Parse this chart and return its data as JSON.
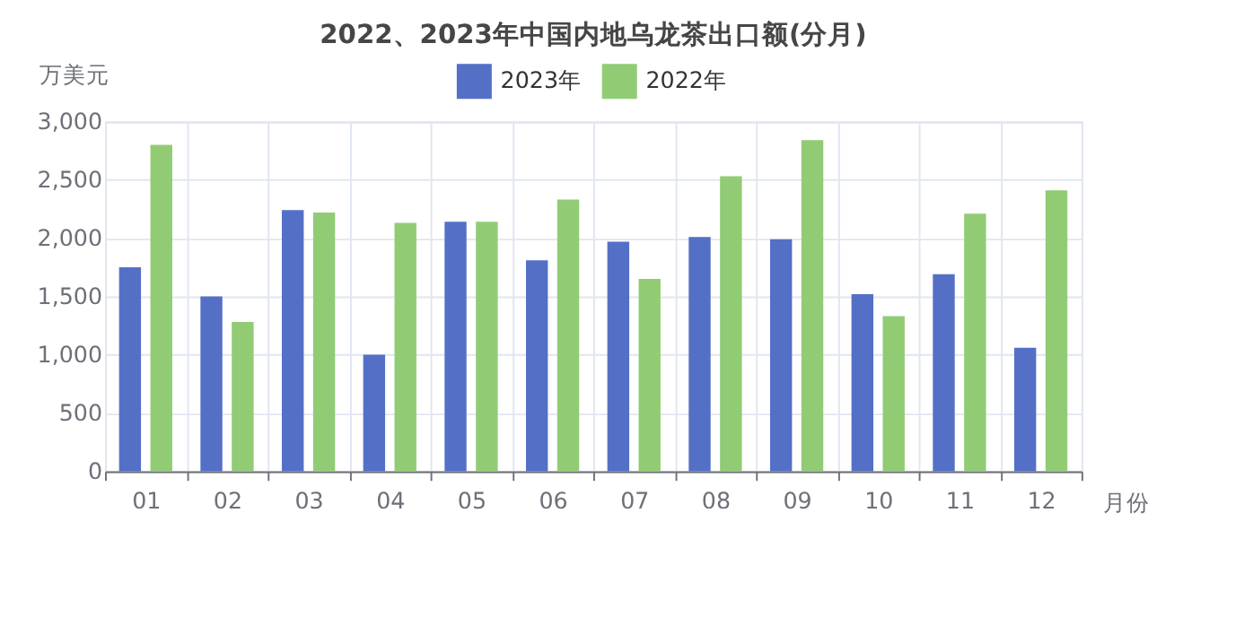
{
  "chart_data": {
    "type": "bar",
    "title": "2022、2023年中国内地乌龙茶出口额(分月)",
    "xlabel": "月份",
    "ylabel": "万美元",
    "categories": [
      "01",
      "02",
      "03",
      "04",
      "05",
      "06",
      "07",
      "08",
      "09",
      "10",
      "11",
      "12"
    ],
    "series": [
      {
        "name": "2023年",
        "color": "#5470c6",
        "values": [
          1750,
          1500,
          2240,
          1000,
          2140,
          1810,
          1970,
          2010,
          1990,
          1520,
          1690,
          1060
        ]
      },
      {
        "name": "2022年",
        "color": "#91cc75",
        "values": [
          2800,
          1280,
          2220,
          2130,
          2140,
          2330,
          1650,
          2530,
          2840,
          1330,
          2210,
          2410
        ]
      }
    ],
    "ylim": [
      0,
      3000
    ],
    "yticks": [
      0,
      500,
      {
        "value": 1000,
        "label": "1,000"
      },
      {
        "value": 1500,
        "label": "1,500"
      },
      {
        "value": 2000,
        "label": "2,000"
      },
      {
        "value": 2500,
        "label": "2,500"
      },
      {
        "value": 3000,
        "label": "3,000"
      }
    ],
    "grid": true,
    "legend": "top"
  }
}
